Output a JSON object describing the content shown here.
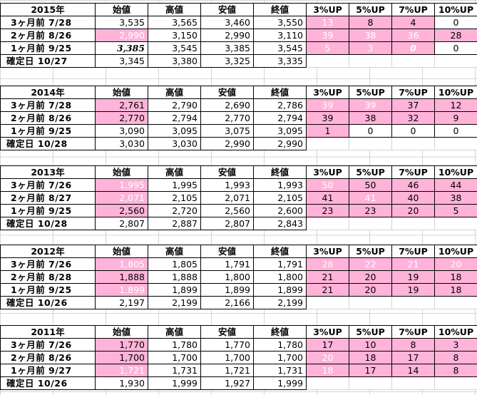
{
  "headers": {
    "open": "始値",
    "high": "高値",
    "low": "安値",
    "close": "終値",
    "up3": "3%UP",
    "up5": "5%UP",
    "up7": "7%UP",
    "up10": "10%UP"
  },
  "tables": [
    {
      "year": "2015年",
      "rows": [
        {
          "label": "3ヶ月前  7/28",
          "open": "3,535",
          "high": "3,565",
          "low": "3,460",
          "close": "3,550",
          "up3": "13",
          "up5": "8",
          "up7": "4",
          "up10": "0"
        },
        {
          "label": "2ヶ月前  8/26",
          "open": "2,990",
          "high": "3,150",
          "low": "2,990",
          "close": "3,110",
          "up3": "39",
          "up5": "38",
          "up7": "36",
          "up10": "28"
        },
        {
          "label": "1ヶ月前  9/25",
          "open": "3,385",
          "high": "3,545",
          "low": "3,385",
          "close": "3,545",
          "up3": "5",
          "up5": "3",
          "up7": "0",
          "up10": "0"
        },
        {
          "label": "確定日  10/27",
          "open": "3,345",
          "high": "3,380",
          "low": "3,325",
          "close": "3,335"
        }
      ]
    },
    {
      "year": "2014年",
      "rows": [
        {
          "label": "3ヶ月前  7/28",
          "open": "2,761",
          "high": "2,790",
          "low": "2,690",
          "close": "2,786",
          "up3": "39",
          "up5": "39",
          "up7": "37",
          "up10": "12"
        },
        {
          "label": "2ヶ月前  8/26",
          "open": "2,770",
          "high": "2,794",
          "low": "2,770",
          "close": "2,794",
          "up3": "39",
          "up5": "38",
          "up7": "32",
          "up10": "9"
        },
        {
          "label": "1ヶ月前  9/25",
          "open": "3,090",
          "high": "3,095",
          "low": "3,075",
          "close": "3,095",
          "up3": "1",
          "up5": "0",
          "up7": "0",
          "up10": "0"
        },
        {
          "label": "確定日  10/28",
          "open": "3,030",
          "high": "3,030",
          "low": "2,990",
          "close": "2,990"
        }
      ]
    },
    {
      "year": "2013年",
      "rows": [
        {
          "label": "3ヶ月前  7/26",
          "open": "1,995",
          "high": "1,995",
          "low": "1,993",
          "close": "1,993",
          "up3": "50",
          "up5": "50",
          "up7": "46",
          "up10": "44"
        },
        {
          "label": "2ヶ月前  8/27",
          "open": "2,071",
          "high": "2,105",
          "low": "2,071",
          "close": "2,105",
          "up3": "41",
          "up5": "41",
          "up7": "40",
          "up10": "38"
        },
        {
          "label": "1ヶ月前  9/25",
          "open": "2,560",
          "high": "2,720",
          "low": "2,560",
          "close": "2,600",
          "up3": "23",
          "up5": "23",
          "up7": "20",
          "up10": "5"
        },
        {
          "label": "確定日  10/28",
          "open": "2,807",
          "high": "2,887",
          "low": "2,807",
          "close": "2,843"
        }
      ]
    },
    {
      "year": "2012年",
      "rows": [
        {
          "label": "3ヶ月前  7/26",
          "open": "1,805",
          "high": "1,805",
          "low": "1,791",
          "close": "1,791",
          "up3": "28",
          "up5": "22",
          "up7": "21",
          "up10": "20"
        },
        {
          "label": "2ヶ月前  8/28",
          "open": "1,888",
          "high": "1,888",
          "low": "1,800",
          "close": "1,800",
          "up3": "21",
          "up5": "20",
          "up7": "19",
          "up10": "18"
        },
        {
          "label": "1ヶ月前  9/25",
          "open": "1,899",
          "high": "1,899",
          "low": "1,899",
          "close": "1,899",
          "up3": "21",
          "up5": "20",
          "up7": "19",
          "up10": "18"
        },
        {
          "label": "確定日  10/26",
          "open": "2,197",
          "high": "2,199",
          "low": "2,166",
          "close": "2,199"
        }
      ]
    },
    {
      "year": "2011年",
      "rows": [
        {
          "label": "3ヶ月前  7/26",
          "open": "1,770",
          "high": "1,780",
          "low": "1,770",
          "close": "1,780",
          "up3": "17",
          "up5": "10",
          "up7": "8",
          "up10": "3"
        },
        {
          "label": "2ヶ月前  8/26",
          "open": "1,700",
          "high": "1,700",
          "low": "1,700",
          "close": "1,700",
          "up3": "20",
          "up5": "18",
          "up7": "17",
          "up10": "8"
        },
        {
          "label": "1ヶ月前  9/27",
          "open": "1,721",
          "high": "1,731",
          "low": "1,721",
          "close": "1,731",
          "up3": "18",
          "up5": "17",
          "up7": "14",
          "up10": "8"
        },
        {
          "label": "確定日  10/26",
          "open": "1,930",
          "high": "1,999",
          "low": "1,927",
          "close": "1,999"
        }
      ]
    }
  ],
  "colors": {
    "highlight": "#ffb3d9",
    "grid": "#d4d4d4",
    "border": "#000000"
  }
}
